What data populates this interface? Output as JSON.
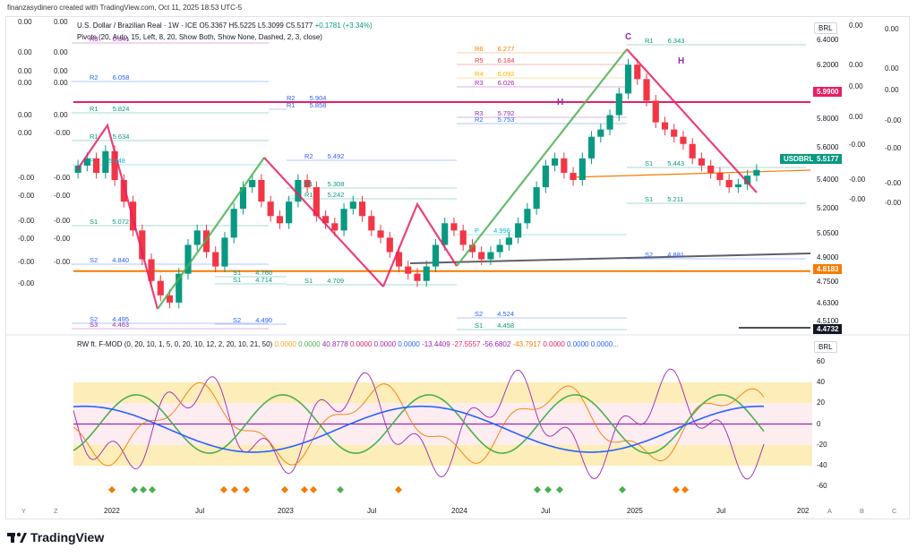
{
  "header": {
    "creator": "finanzasydinero created with TradingView.com, Oct 11, 2025 18:53 UTC-5"
  },
  "symbol": {
    "name": "U.S. Dollar / Brazilian Real · 1W · ICE",
    "open": "O5.3367",
    "high": "H5.5225",
    "low": "L5.3099",
    "close": "C5.5177",
    "change": "+0.1781 (+3.34%)"
  },
  "pivots_label": "Pivots (20, Auto, 15, Left, 8, 20, Show Both, Show None, Dashed, 2, 3, close)",
  "indicator": {
    "name": "RW ft. F-MOD (0, 20, 10, 1, 5, 0, 20, 10, 12, 2, 20, 10, 21, 50)",
    "values": [
      {
        "text": "0.0000",
        "color": "#f5a623"
      },
      {
        "text": "0.0000",
        "color": "#4caf50"
      },
      {
        "text": "40.8778",
        "color": "#9c27b0"
      },
      {
        "text": "0.0000",
        "color": "#e91e63"
      },
      {
        "text": "0.0000",
        "color": "#9c27b0"
      },
      {
        "text": "0.0000",
        "color": "#2962ff"
      },
      {
        "text": "-13.4409",
        "color": "#9c27b0"
      },
      {
        "text": "-27.5557",
        "color": "#e91e63"
      },
      {
        "text": "-56.6802",
        "color": "#9c27b0"
      },
      {
        "text": "-43.7917",
        "color": "#f57c00"
      },
      {
        "text": "0.0000",
        "color": "#e91e63"
      },
      {
        "text": "0.0000",
        "color": "#2962ff"
      },
      {
        "text": "0.0000...",
        "color": "#2962ff"
      }
    ]
  },
  "currency_label": "BRL",
  "left_values": [
    "0.00",
    "0.00",
    "0.00",
    "0.00",
    "0.00",
    "0.00",
    "0.00",
    "0.00",
    "0.00",
    "0.00",
    "0.00",
    "-0.00",
    "-0.00",
    "-0.00",
    "-0.00",
    "-0.00",
    "-0.00",
    "-0.00",
    "-0.00",
    "-0.00",
    "-0.00",
    "-0.00",
    "-0.00"
  ],
  "right_values": [
    "0.00",
    "0.00",
    "0.00",
    "0.00",
    "0.00",
    "0.00",
    "0.00",
    "-0.00",
    "-0.00",
    "-0.00",
    "-0.00",
    "-0.00",
    "-0.00",
    "-0.00"
  ],
  "price_axis": [
    "6.4000",
    "6.2000",
    "6.0000",
    "5.8000",
    "5.6000",
    "5.4000",
    "5.2000",
    "5.0500",
    "4.9000",
    "4.7500",
    "4.6300",
    "4.5100"
  ],
  "price_tags": [
    {
      "text": "5.9900",
      "color": "#e91e63"
    },
    {
      "text": "USDBRL",
      "color": "#089981"
    },
    {
      "text": "5.5177",
      "color": "#089981"
    },
    {
      "text": "4.8183",
      "color": "#f57c00"
    },
    {
      "text": "4.4732",
      "color": "#131722"
    }
  ],
  "indicator_axis": [
    "60",
    "40",
    "20",
    "0",
    "-20",
    "-40",
    "-60"
  ],
  "x_axis": [
    "2022",
    "Jul",
    "2023",
    "Jul",
    "2024",
    "Jul",
    "2025",
    "Jul",
    "202"
  ],
  "corner_labels": {
    "y": "Y",
    "z": "Z",
    "a": "A",
    "b": "B",
    "c": "C"
  },
  "pivots": [
    {
      "label": "R3",
      "value": "6.341"
    },
    {
      "label": "R2",
      "value": "6.058"
    },
    {
      "label": "R1",
      "value": "5.824"
    },
    {
      "label": "R2",
      "value": "5.904"
    },
    {
      "label": "R1",
      "value": "5.858"
    },
    {
      "label": "R1",
      "value": "5.634"
    },
    {
      "label": "R2",
      "value": "5.492"
    },
    {
      "label": "P",
      "value": "5.448"
    },
    {
      "label": "R1",
      "value": "5.308"
    },
    {
      "label": "R1",
      "value": "5.242"
    },
    {
      "label": "S1",
      "value": "5.072"
    },
    {
      "label": "S2",
      "value": "4.840"
    },
    {
      "label": "S1",
      "value": "4.760"
    },
    {
      "label": "S1",
      "value": "4.714"
    },
    {
      "label": "S1",
      "value": "4.709"
    },
    {
      "label": "S2",
      "value": "4.495"
    },
    {
      "label": "S3",
      "value": "4.463"
    },
    {
      "label": "S2",
      "value": "4.490"
    },
    {
      "label": "S2",
      "value": "4.524"
    },
    {
      "label": "S1",
      "value": "4.458"
    },
    {
      "label": "R6",
      "value": "6.277"
    },
    {
      "label": "R5",
      "value": "6.184"
    },
    {
      "label": "R4",
      "value": "6.092"
    },
    {
      "label": "R3",
      "value": "6.026"
    },
    {
      "label": "R3",
      "value": "5.792"
    },
    {
      "label": "R2",
      "value": "5.753"
    },
    {
      "label": "R1",
      "value": "6.343"
    },
    {
      "label": "S1",
      "value": "5.443"
    },
    {
      "label": "S1",
      "value": "5.211"
    },
    {
      "label": "S2",
      "value": "4.881"
    },
    {
      "label": "P",
      "value": "4.996"
    }
  ],
  "wave_labels": [
    "C",
    "H",
    "H"
  ],
  "colors": {
    "up": "#089981",
    "down": "#f23645",
    "green_wave": "#4caf50",
    "red_wave": "#e91e63"
  },
  "brand": "TradingView",
  "chart_data": {
    "type": "candlestick",
    "title": "U.S. Dollar / Brazilian Real · 1W · ICE",
    "x_ticks": [
      "2022",
      "Jul",
      "2023",
      "Jul",
      "2024",
      "Jul",
      "2025",
      "Jul"
    ],
    "ylim": [
      4.45,
      6.45
    ],
    "series": [
      {
        "name": "USDBRL",
        "values": [
          5.55,
          5.6,
          5.5,
          5.65,
          5.45,
          5.3,
          5.1,
          4.9,
          4.75,
          4.65,
          4.6,
          4.8,
          5.0,
          5.1,
          4.95,
          4.85,
          5.05,
          5.25,
          5.4,
          5.45,
          5.3,
          5.2,
          5.15,
          5.3,
          5.45,
          5.4,
          5.2,
          5.15,
          5.1,
          5.25,
          5.3,
          5.2,
          5.1,
          5.05,
          4.95,
          4.85,
          4.8,
          4.75,
          4.85,
          5.0,
          5.15,
          5.1,
          5.0,
          4.95,
          4.9,
          4.95,
          5.0,
          5.05,
          5.15,
          5.25,
          5.4,
          5.55,
          5.6,
          5.5,
          5.45,
          5.6,
          5.75,
          5.8,
          5.9,
          6.05,
          6.25,
          6.15,
          6.0,
          5.85,
          5.8,
          5.75,
          5.7,
          5.6,
          5.55,
          5.5,
          5.45,
          5.4,
          5.42,
          5.48,
          5.52
        ]
      }
    ],
    "indicator": {
      "name": "RW ft. F-MOD",
      "ylim": [
        -70,
        70
      ],
      "zones": [
        -40,
        -20,
        20,
        40
      ]
    }
  }
}
